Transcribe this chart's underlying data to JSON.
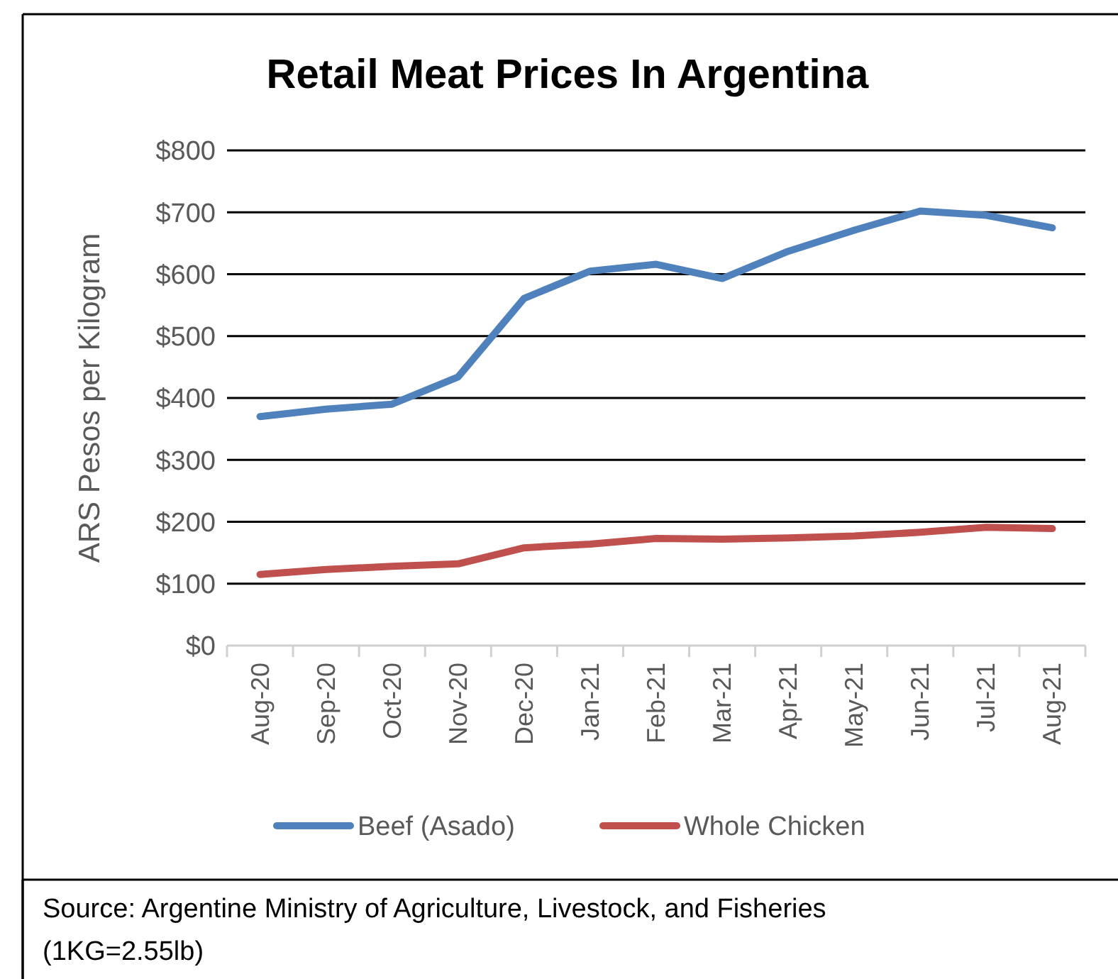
{
  "chart_data": {
    "type": "line",
    "title": "Retail Meat Prices In Argentina",
    "ylabel": "ARS Pesos per Kilogram",
    "categories": [
      "Aug-20",
      "Sep-20",
      "Oct-20",
      "Nov-20",
      "Dec-20",
      "Jan-21",
      "Feb-21",
      "Mar-21",
      "Apr-21",
      "May-21",
      "Jun-21",
      "Jul-21",
      "Aug-21"
    ],
    "series": [
      {
        "name": "Beef (Asado)",
        "color": "#4f81bd",
        "values": [
          370,
          382,
          390,
          434,
          561,
          605,
          616,
          593,
          637,
          671,
          702,
          695,
          675
        ]
      },
      {
        "name": "Whole Chicken",
        "color": "#c0504d",
        "values": [
          115,
          123,
          128,
          132,
          158,
          164,
          173,
          172,
          174,
          177,
          183,
          191,
          189
        ]
      }
    ],
    "ylim": [
      0,
      800
    ],
    "yticks": [
      {
        "value": 0,
        "label": "$0"
      },
      {
        "value": 100,
        "label": "$100"
      },
      {
        "value": 200,
        "label": "$200"
      },
      {
        "value": 300,
        "label": "$300"
      },
      {
        "value": 400,
        "label": "$400"
      },
      {
        "value": 500,
        "label": "$500"
      },
      {
        "value": 600,
        "label": "$600"
      },
      {
        "value": 700,
        "label": "$700"
      },
      {
        "value": 800,
        "label": "$800"
      }
    ],
    "grid": "y",
    "legend": "bottom",
    "marker": "none",
    "line_style": "solid",
    "annotations": [
      "Source: Argentine Ministry of Agriculture, Livestock, and Fisheries",
      "(1KG=2.55lb)"
    ]
  }
}
